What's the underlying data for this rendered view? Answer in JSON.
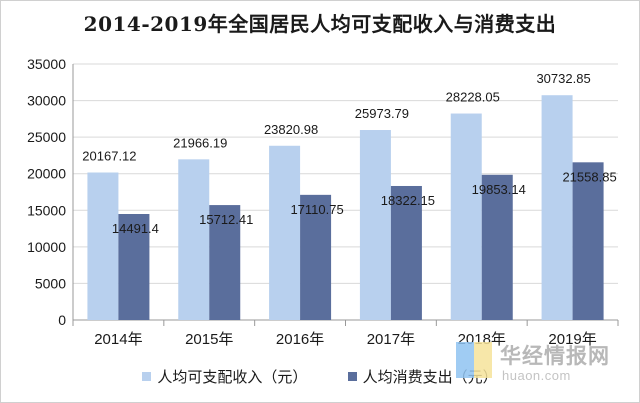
{
  "chart_data": {
    "type": "bar",
    "title": "2014-2019年全国居民人均可支配收入与消费支出",
    "categories": [
      "2014年",
      "2015年",
      "2016年",
      "2017年",
      "2018年",
      "2019年"
    ],
    "series": [
      {
        "name": "人均可支配收入（元）",
        "color": "#b8d0ee",
        "values": [
          20167.12,
          21966.19,
          23820.98,
          25973.79,
          28228.05,
          30732.85
        ],
        "labels": [
          "20167.12",
          "21966.19",
          "23820.98",
          "25973.79",
          "28228.05",
          "30732.85"
        ]
      },
      {
        "name": "人均消费支出（元）",
        "color": "#5a6e9c",
        "values": [
          14491.4,
          15712.41,
          17110.75,
          18322.15,
          19853.14,
          21558.85
        ],
        "labels": [
          "14491.4",
          "15712.41",
          "17110.75",
          "18322.15",
          "19853.14",
          "21558.85"
        ]
      }
    ],
    "ylim": [
      0,
      35000
    ],
    "yticks": [
      0,
      5000,
      10000,
      15000,
      20000,
      25000,
      30000,
      35000
    ],
    "grid": true,
    "legend_position": "bottom",
    "xlabel": "",
    "ylabel": ""
  },
  "watermark": {
    "name": "华经情报网",
    "url": "huaon.com"
  }
}
